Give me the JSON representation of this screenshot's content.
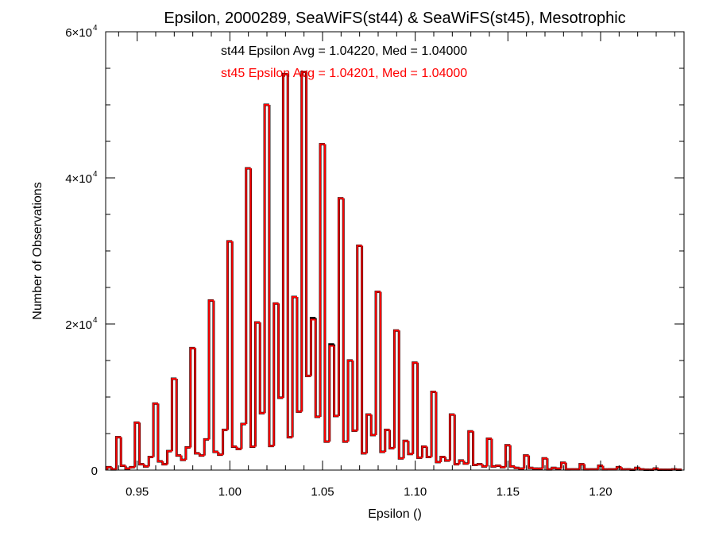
{
  "chart_data": {
    "type": "bar",
    "title": "Epsilon, 2000289, SeaWiFS(st44) & SeaWiFS(st45), Mesotrophic",
    "xlabel": "Epsilon ()",
    "ylabel": "Number of Observations",
    "xlim": [
      0.933,
      1.245
    ],
    "ylim": [
      0,
      60000
    ],
    "x_ticks": [
      0.95,
      1.0,
      1.05,
      1.1,
      1.15,
      1.2
    ],
    "x_tick_labels": [
      "0.95",
      "1.00",
      "1.05",
      "1.10",
      "1.15",
      "1.20"
    ],
    "y_ticks": [
      0,
      20000,
      40000,
      60000
    ],
    "y_tick_labels": [
      {
        "base": "0",
        "exp": ""
      },
      {
        "base": "2×10",
        "exp": "4"
      },
      {
        "base": "4×10",
        "exp": "4"
      },
      {
        "base": "6×10",
        "exp": "4"
      }
    ],
    "annotations": [
      {
        "text": "st44 Epsilon Avg = 1.04220, Med = 1.04000",
        "color": "#000000"
      },
      {
        "text": "st45 Epsilon Avg = 1.04201, Med = 1.04000",
        "color": "#ff0000"
      }
    ],
    "grid": false,
    "bin_width": 0.0025,
    "series": [
      {
        "color": "#000000",
        "bins": [
          [
            0.935,
            400
          ],
          [
            0.9375,
            100
          ],
          [
            0.94,
            4500
          ],
          [
            0.9425,
            600
          ],
          [
            0.945,
            200
          ],
          [
            0.9475,
            400
          ],
          [
            0.95,
            6500
          ],
          [
            0.9525,
            800
          ],
          [
            0.955,
            500
          ],
          [
            0.9575,
            1800
          ],
          [
            0.96,
            9100
          ],
          [
            0.9625,
            1200
          ],
          [
            0.965,
            800
          ],
          [
            0.9675,
            2600
          ],
          [
            0.97,
            12500
          ],
          [
            0.9725,
            2000
          ],
          [
            0.975,
            1400
          ],
          [
            0.9775,
            3100
          ],
          [
            0.98,
            16700
          ],
          [
            0.9825,
            2300
          ],
          [
            0.985,
            2000
          ],
          [
            0.9875,
            4200
          ],
          [
            0.99,
            23200
          ],
          [
            0.9925,
            2500
          ],
          [
            0.995,
            2100
          ],
          [
            0.9975,
            5500
          ],
          [
            1.0,
            31300
          ],
          [
            1.0025,
            3200
          ],
          [
            1.005,
            2900
          ],
          [
            1.0075,
            6300
          ],
          [
            1.01,
            41300
          ],
          [
            1.0125,
            3200
          ],
          [
            1.015,
            20200
          ],
          [
            1.0175,
            7800
          ],
          [
            1.02,
            50000
          ],
          [
            1.0225,
            3300
          ],
          [
            1.025,
            22800
          ],
          [
            1.0275,
            9900
          ],
          [
            1.03,
            54200
          ],
          [
            1.0325,
            4500
          ],
          [
            1.035,
            23700
          ],
          [
            1.0375,
            8000
          ],
          [
            1.04,
            54500
          ],
          [
            1.0425,
            12900
          ],
          [
            1.045,
            20800
          ],
          [
            1.0475,
            7300
          ],
          [
            1.05,
            44600
          ],
          [
            1.0525,
            3900
          ],
          [
            1.055,
            17200
          ],
          [
            1.0575,
            7400
          ],
          [
            1.06,
            37200
          ],
          [
            1.0625,
            3900
          ],
          [
            1.065,
            15000
          ],
          [
            1.0675,
            5400
          ],
          [
            1.07,
            30700
          ],
          [
            1.0725,
            2300
          ],
          [
            1.075,
            7600
          ],
          [
            1.0775,
            4800
          ],
          [
            1.08,
            24400
          ],
          [
            1.0825,
            2500
          ],
          [
            1.085,
            5500
          ],
          [
            1.0875,
            3000
          ],
          [
            1.09,
            19100
          ],
          [
            1.0925,
            1600
          ],
          [
            1.095,
            4000
          ],
          [
            1.0975,
            2200
          ],
          [
            1.1,
            14700
          ],
          [
            1.1025,
            1700
          ],
          [
            1.105,
            3200
          ],
          [
            1.1075,
            1800
          ],
          [
            1.11,
            10700
          ],
          [
            1.1125,
            1100
          ],
          [
            1.115,
            1800
          ],
          [
            1.1175,
            1300
          ],
          [
            1.12,
            7600
          ],
          [
            1.1225,
            800
          ],
          [
            1.125,
            1300
          ],
          [
            1.1275,
            900
          ],
          [
            1.13,
            5300
          ],
          [
            1.1325,
            700
          ],
          [
            1.135,
            800
          ],
          [
            1.1375,
            500
          ],
          [
            1.14,
            4300
          ],
          [
            1.1425,
            500
          ],
          [
            1.145,
            600
          ],
          [
            1.1475,
            400
          ],
          [
            1.15,
            3400
          ],
          [
            1.1525,
            500
          ],
          [
            1.155,
            300
          ],
          [
            1.1575,
            200
          ],
          [
            1.16,
            2000
          ],
          [
            1.1625,
            300
          ],
          [
            1.165,
            200
          ],
          [
            1.1675,
            200
          ],
          [
            1.17,
            1600
          ],
          [
            1.1725,
            100
          ],
          [
            1.175,
            300
          ],
          [
            1.1775,
            200
          ],
          [
            1.18,
            1000
          ],
          [
            1.1825,
            100
          ],
          [
            1.185,
            100
          ],
          [
            1.1875,
            100
          ],
          [
            1.19,
            800
          ],
          [
            1.1925,
            100
          ],
          [
            1.195,
            100
          ],
          [
            1.1975,
            100
          ],
          [
            1.2,
            600
          ],
          [
            1.2025,
            100
          ],
          [
            1.205,
            100
          ],
          [
            1.2075,
            100
          ],
          [
            1.21,
            400
          ],
          [
            1.2125,
            100
          ],
          [
            1.215,
            100
          ],
          [
            1.2175,
            50
          ],
          [
            1.22,
            300
          ],
          [
            1.2225,
            100
          ],
          [
            1.225,
            50
          ],
          [
            1.2275,
            50
          ],
          [
            1.23,
            200
          ],
          [
            1.2325,
            50
          ],
          [
            1.235,
            50
          ],
          [
            1.2375,
            50
          ],
          [
            1.24,
            100
          ],
          [
            1.2425,
            50
          ]
        ]
      },
      {
        "color": "#ff0000",
        "bins": [
          [
            0.935,
            400
          ],
          [
            0.9375,
            100
          ],
          [
            0.94,
            4500
          ],
          [
            0.9425,
            600
          ],
          [
            0.945,
            200
          ],
          [
            0.9475,
            400
          ],
          [
            0.95,
            6500
          ],
          [
            0.9525,
            800
          ],
          [
            0.955,
            500
          ],
          [
            0.9575,
            1800
          ],
          [
            0.96,
            9100
          ],
          [
            0.9625,
            1200
          ],
          [
            0.965,
            800
          ],
          [
            0.9675,
            2600
          ],
          [
            0.97,
            12500
          ],
          [
            0.9725,
            2000
          ],
          [
            0.975,
            1400
          ],
          [
            0.9775,
            3100
          ],
          [
            0.98,
            16700
          ],
          [
            0.9825,
            2300
          ],
          [
            0.985,
            2000
          ],
          [
            0.9875,
            4200
          ],
          [
            0.99,
            23200
          ],
          [
            0.9925,
            2500
          ],
          [
            0.995,
            2100
          ],
          [
            0.9975,
            5500
          ],
          [
            1.0,
            31300
          ],
          [
            1.0025,
            3200
          ],
          [
            1.005,
            2900
          ],
          [
            1.0075,
            6300
          ],
          [
            1.01,
            41300
          ],
          [
            1.0125,
            3200
          ],
          [
            1.015,
            20200
          ],
          [
            1.0175,
            7800
          ],
          [
            1.02,
            50000
          ],
          [
            1.0225,
            3300
          ],
          [
            1.025,
            22800
          ],
          [
            1.0275,
            9900
          ],
          [
            1.03,
            54200
          ],
          [
            1.0325,
            4500
          ],
          [
            1.035,
            23700
          ],
          [
            1.0375,
            8000
          ],
          [
            1.04,
            54500
          ],
          [
            1.0425,
            12900
          ],
          [
            1.045,
            20600
          ],
          [
            1.0475,
            7300
          ],
          [
            1.05,
            44600
          ],
          [
            1.0525,
            3900
          ],
          [
            1.055,
            17000
          ],
          [
            1.0575,
            7400
          ],
          [
            1.06,
            37200
          ],
          [
            1.0625,
            3900
          ],
          [
            1.065,
            15000
          ],
          [
            1.0675,
            5400
          ],
          [
            1.07,
            30700
          ],
          [
            1.0725,
            2300
          ],
          [
            1.075,
            7600
          ],
          [
            1.0775,
            4800
          ],
          [
            1.08,
            24400
          ],
          [
            1.0825,
            2500
          ],
          [
            1.085,
            5500
          ],
          [
            1.0875,
            3000
          ],
          [
            1.09,
            19100
          ],
          [
            1.0925,
            1600
          ],
          [
            1.095,
            4000
          ],
          [
            1.0975,
            2200
          ],
          [
            1.1,
            14700
          ],
          [
            1.1025,
            1700
          ],
          [
            1.105,
            3200
          ],
          [
            1.1075,
            1800
          ],
          [
            1.11,
            10700
          ],
          [
            1.1125,
            1100
          ],
          [
            1.115,
            1800
          ],
          [
            1.1175,
            1300
          ],
          [
            1.12,
            7600
          ],
          [
            1.1225,
            800
          ],
          [
            1.125,
            1300
          ],
          [
            1.1275,
            900
          ],
          [
            1.13,
            5300
          ],
          [
            1.1325,
            700
          ],
          [
            1.135,
            800
          ],
          [
            1.1375,
            500
          ],
          [
            1.14,
            4300
          ],
          [
            1.1425,
            500
          ],
          [
            1.145,
            600
          ],
          [
            1.1475,
            400
          ],
          [
            1.15,
            3400
          ],
          [
            1.1525,
            500
          ],
          [
            1.155,
            300
          ],
          [
            1.1575,
            200
          ],
          [
            1.16,
            2000
          ],
          [
            1.1625,
            300
          ],
          [
            1.165,
            200
          ],
          [
            1.1675,
            200
          ],
          [
            1.17,
            1600
          ],
          [
            1.1725,
            100
          ],
          [
            1.175,
            300
          ],
          [
            1.1775,
            200
          ],
          [
            1.18,
            1000
          ],
          [
            1.1825,
            100
          ],
          [
            1.185,
            100
          ],
          [
            1.1875,
            100
          ],
          [
            1.19,
            800
          ],
          [
            1.1925,
            100
          ],
          [
            1.195,
            100
          ],
          [
            1.1975,
            100
          ],
          [
            1.2,
            600
          ],
          [
            1.2025,
            100
          ],
          [
            1.205,
            100
          ],
          [
            1.2075,
            100
          ],
          [
            1.21,
            400
          ],
          [
            1.2125,
            100
          ],
          [
            1.215,
            100
          ],
          [
            1.2175,
            50
          ],
          [
            1.22,
            300
          ],
          [
            1.2225,
            100
          ],
          [
            1.225,
            50
          ],
          [
            1.2275,
            50
          ],
          [
            1.23,
            200
          ],
          [
            1.2325,
            50
          ],
          [
            1.235,
            50
          ],
          [
            1.2375,
            50
          ],
          [
            1.24,
            100
          ],
          [
            1.2425,
            50
          ]
        ]
      }
    ]
  }
}
